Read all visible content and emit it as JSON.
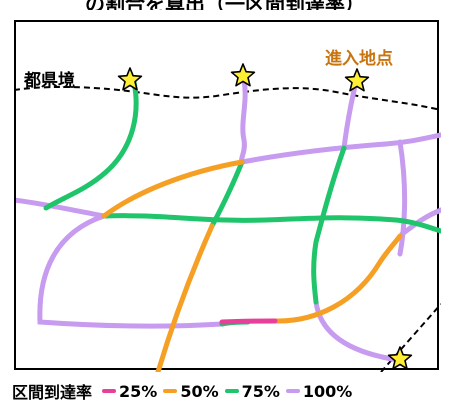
{
  "header": {
    "caption": "の割合を算出（一区間到達率）"
  },
  "map": {
    "prefecture_border_label": "都県境",
    "entry_point_label": "進入地点",
    "colors": {
      "border": "#000000",
      "entry_label": "#c8740f",
      "star_fill": "#ffee33",
      "star_stroke": "#000000"
    }
  },
  "legend": {
    "title": "区間到達率",
    "items": [
      {
        "label": "25%",
        "color": "#e8409a"
      },
      {
        "label": "50%",
        "color": "#f5a024"
      },
      {
        "label": "75%",
        "color": "#1fc46b"
      },
      {
        "label": "100%",
        "color": "#c79bef"
      }
    ]
  }
}
